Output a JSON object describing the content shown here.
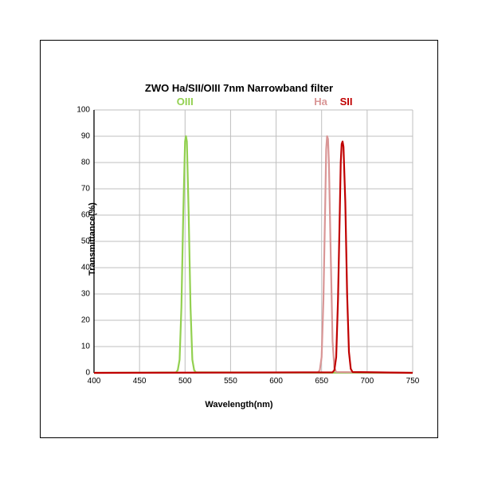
{
  "chart": {
    "type": "line",
    "title": "ZWO Ha/SII/OIII 7nm Narrowband filter",
    "title_fontsize": 13,
    "xlabel": "Wavelength(nm)",
    "ylabel": "Transmittance(%)",
    "label_fontsize": 11,
    "tick_fontsize": 10,
    "background_color": "#ffffff",
    "grid_color": "#bfbfbf",
    "axis_color": "#000000",
    "frame_border_color": "#000000",
    "xlim": [
      400,
      750
    ],
    "ylim": [
      0,
      100
    ],
    "xticks": [
      400,
      450,
      500,
      550,
      600,
      650,
      700,
      750
    ],
    "yticks": [
      0,
      10,
      20,
      30,
      40,
      50,
      60,
      70,
      80,
      90,
      100
    ],
    "line_width": 2.2,
    "series": [
      {
        "name": "OIII",
        "color": "#92d050",
        "label_color": "#92d050",
        "label_x": 500,
        "points": [
          [
            400,
            0
          ],
          [
            490,
            0.2
          ],
          [
            492,
            1
          ],
          [
            494,
            5
          ],
          [
            496,
            25
          ],
          [
            498,
            60
          ],
          [
            500,
            88
          ],
          [
            501,
            90
          ],
          [
            502,
            88
          ],
          [
            504,
            60
          ],
          [
            506,
            25
          ],
          [
            508,
            5
          ],
          [
            510,
            1
          ],
          [
            512,
            0.2
          ],
          [
            750,
            0
          ]
        ]
      },
      {
        "name": "Ha",
        "color": "#d99696",
        "label_color": "#d99696",
        "label_x": 649,
        "points": [
          [
            400,
            0
          ],
          [
            646,
            0.2
          ],
          [
            648,
            1
          ],
          [
            650,
            6
          ],
          [
            652,
            28
          ],
          [
            654,
            65
          ],
          [
            655,
            85
          ],
          [
            656,
            90
          ],
          [
            657,
            89
          ],
          [
            658,
            80
          ],
          [
            660,
            45
          ],
          [
            662,
            12
          ],
          [
            664,
            2
          ],
          [
            666,
            0.3
          ],
          [
            750,
            0
          ]
        ]
      },
      {
        "name": "SII",
        "color": "#c00000",
        "label_color": "#c00000",
        "label_x": 677,
        "points": [
          [
            400,
            0
          ],
          [
            662,
            0.2
          ],
          [
            664,
            1
          ],
          [
            666,
            6
          ],
          [
            668,
            28
          ],
          [
            670,
            62
          ],
          [
            671,
            80
          ],
          [
            672,
            87
          ],
          [
            673,
            88
          ],
          [
            674,
            86
          ],
          [
            676,
            65
          ],
          [
            678,
            30
          ],
          [
            680,
            8
          ],
          [
            682,
            1.5
          ],
          [
            684,
            0.3
          ],
          [
            750,
            0
          ]
        ]
      }
    ]
  }
}
